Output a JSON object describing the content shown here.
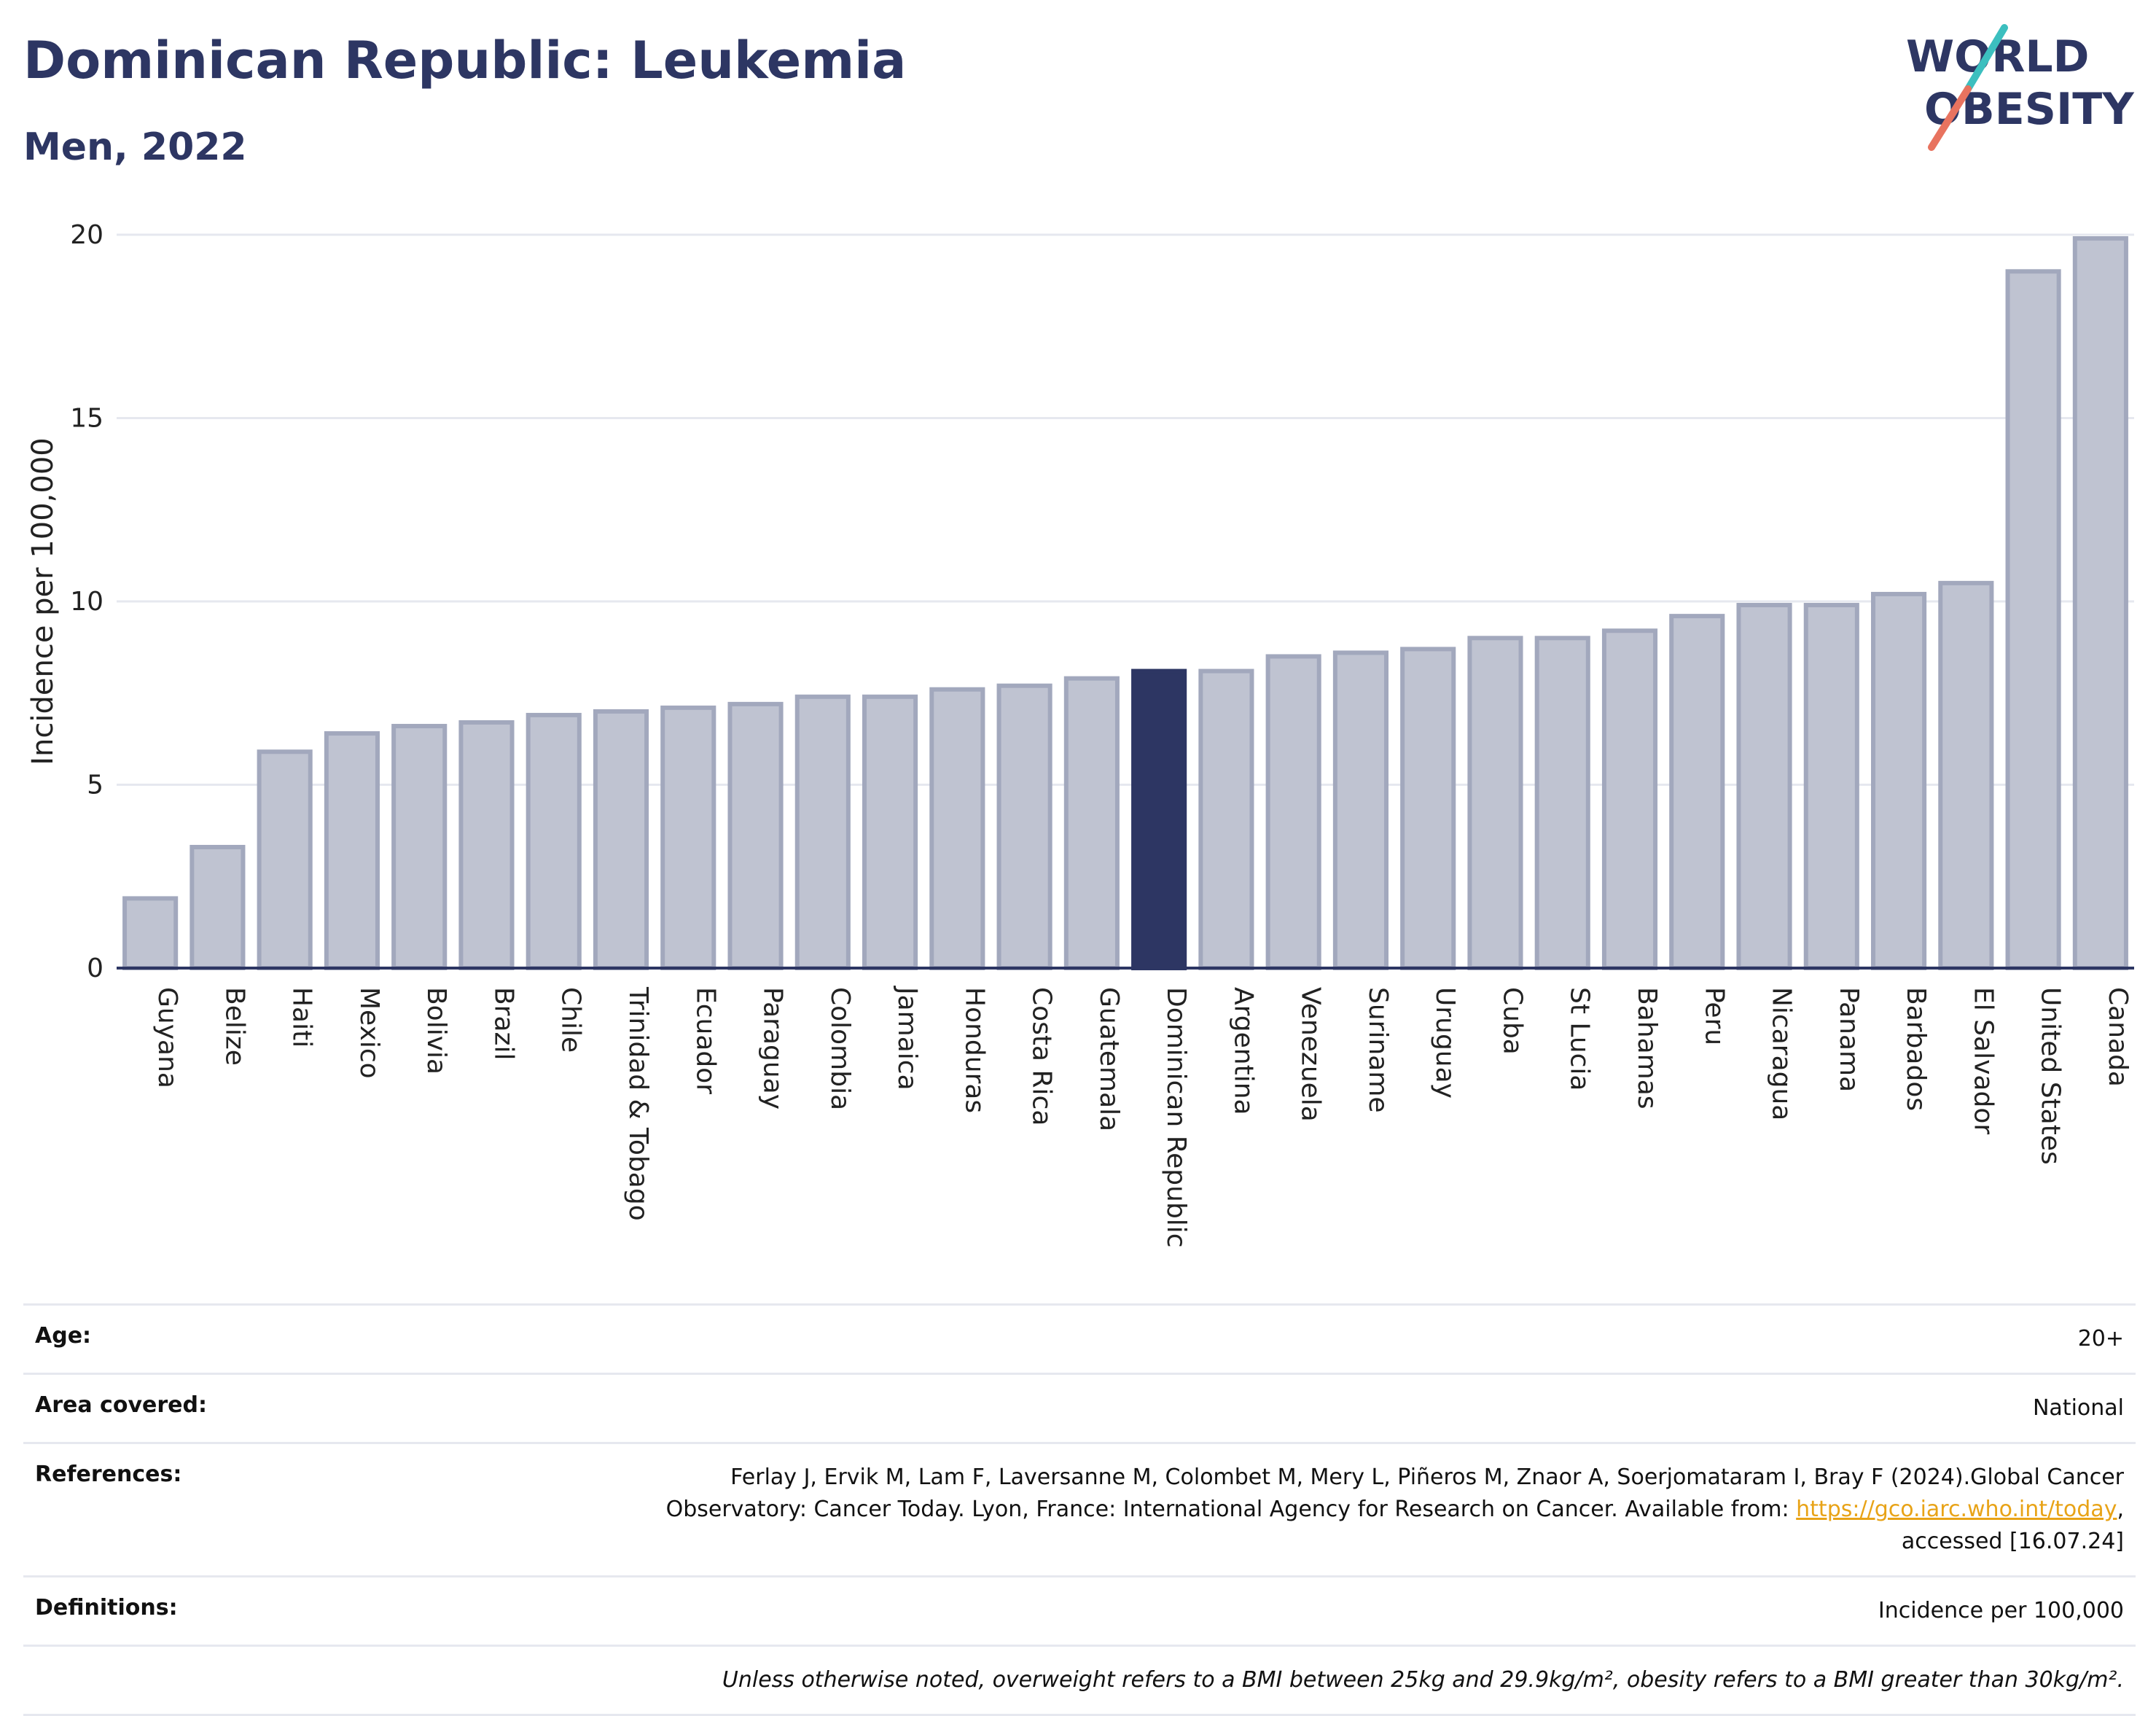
{
  "header": {
    "title": "Dominican Republic: Leukemia",
    "subtitle": "Men, 2022"
  },
  "logo": {
    "line1": "WORLD",
    "line2": "OBESITY",
    "colors": {
      "text": "#2d3663",
      "slash_teal": "#3cbfbf",
      "slash_coral": "#e8735f"
    }
  },
  "chart_data": {
    "type": "bar",
    "ylabel": "Incidence per 100,000",
    "ylim": [
      0,
      20
    ],
    "yticks": [
      0,
      5,
      10,
      15,
      20
    ],
    "grid": true,
    "categories": [
      "Guyana",
      "Belize",
      "Haiti",
      "Mexico",
      "Bolivia",
      "Brazil",
      "Chile",
      "Trinidad & Tobago",
      "Ecuador",
      "Paraguay",
      "Colombia",
      "Jamaica",
      "Honduras",
      "Costa Rica",
      "Guatemala",
      "Dominican Republic",
      "Argentina",
      "Venezuela",
      "Suriname",
      "Uruguay",
      "Cuba",
      "St Lucia",
      "Bahamas",
      "Peru",
      "Nicaragua",
      "Panama",
      "Barbados",
      "El Salvador",
      "United States",
      "Canada"
    ],
    "values": [
      1.9,
      3.3,
      5.9,
      6.4,
      6.6,
      6.7,
      6.9,
      7.0,
      7.1,
      7.2,
      7.4,
      7.4,
      7.6,
      7.7,
      7.9,
      8.1,
      8.1,
      8.5,
      8.6,
      8.7,
      9.0,
      9.0,
      9.2,
      9.6,
      9.9,
      9.9,
      10.2,
      10.5,
      19.0,
      19.9
    ],
    "highlight": "Dominican Republic",
    "colors": {
      "bar": "#bfc3d1",
      "bar_border": "#a2a8bd",
      "highlight": "#2d3663",
      "grid": "#e6e8ef",
      "axis": "#2d3663"
    }
  },
  "meta": {
    "age_label": "Age:",
    "age_value": "20+",
    "area_label": "Area covered:",
    "area_value": "National",
    "references_label": "References:",
    "references_line1": "Ferlay J, Ervik M, Lam F, Laversanne M, Colombet M, Mery L, Piñeros M, Znaor A, Soerjomataram I, Bray F (2024).Global Cancer",
    "references_line2_pre": "Observatory: Cancer Today. Lyon, France: International Agency for Research on Cancer. Available from: ",
    "references_link": "https://gco.iarc.who.int/today",
    "references_line2_post": ",",
    "references_line3": "accessed [16.07.24]",
    "definitions_label": "Definitions:",
    "definitions_value": "Incidence per 100,000",
    "note": "Unless otherwise noted, overweight refers to a BMI between 25kg and 29.9kg/m², obesity refers to a BMI greater than 30kg/m²."
  }
}
